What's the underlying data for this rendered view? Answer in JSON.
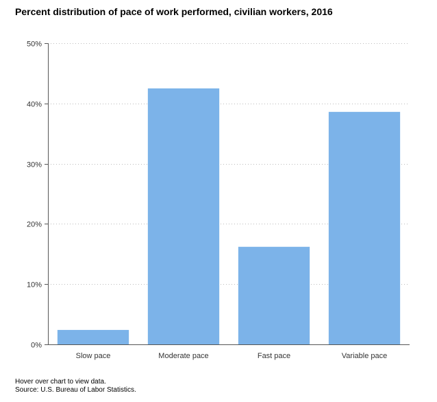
{
  "chart_data": {
    "type": "bar",
    "title": "Percent distribution of pace of work performed, civilian workers, 2016",
    "categories": [
      "Slow pace",
      "Moderate pace",
      "Fast pace",
      "Variable pace"
    ],
    "values": [
      2.4,
      42.5,
      16.2,
      38.6
    ],
    "ylim": [
      0,
      50
    ],
    "yticks": [
      0,
      10,
      20,
      30,
      40,
      50
    ],
    "ytick_labels": [
      "0%",
      "10%",
      "20%",
      "30%",
      "40%",
      "50%"
    ],
    "xlabel": "",
    "ylabel": "",
    "grid": true,
    "bar_color": "#7cb3e9",
    "grid_color": "#bbbbbb",
    "axis_color": "#555555"
  },
  "footer": {
    "hover_note": "Hover over chart to view data.",
    "source": "Source: U.S. Bureau of Labor Statistics."
  }
}
